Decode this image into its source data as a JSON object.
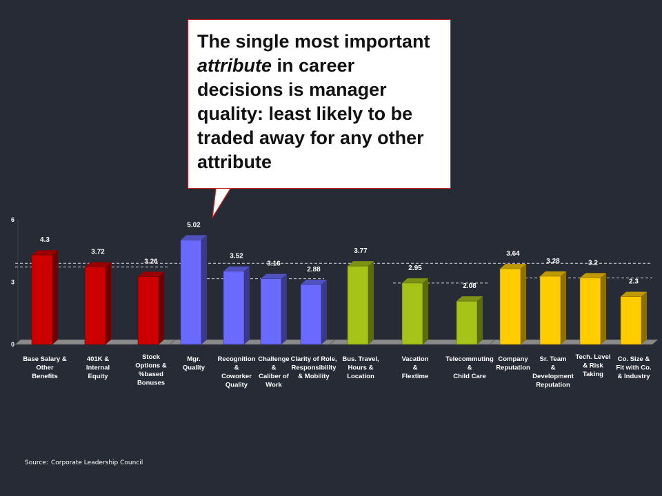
{
  "callout": {
    "line_pre": "The single most important ",
    "line_em": "attribute",
    "line_post": " in career decisions is manager quality: least likely to be traded away for any other attribute"
  },
  "source": {
    "label": "Source:",
    "text": "Corporate Leadership Council"
  },
  "colors": {
    "background": "#262b36",
    "red": "#cc0000",
    "blue": "#6a6aff",
    "green": "#a6c31a",
    "yellow": "#ffcc00",
    "text": "#ffffff",
    "callout_border": "#cc2222"
  },
  "chart_data": {
    "type": "bar",
    "title": "",
    "xlabel": "",
    "ylabel": "",
    "ylim": [
      0,
      6
    ],
    "yticks": [
      "0",
      "3",
      "6"
    ],
    "grid": false,
    "categories": [
      "Base Salary & Other Benefits",
      "401K & Internal Equity",
      "Stock Options & %based Bonuses",
      "Mgr. Quality",
      "Recognition & Coworker Quality",
      "Challenge & Caliber of Work",
      "Clarity of Role, Responsibility & Mobility",
      "Bus. Travel, Hours & Location",
      "Vacation & Flextime",
      "Telecommuting & Child Care",
      "Company Reputation",
      "Sr. Team & Development Reputation",
      "Tech. Level & Risk Taking",
      "Co. Size & Fit with Co. & Industry"
    ],
    "category_lines": [
      [
        "Base Salary &",
        "Other",
        "Benefits"
      ],
      [
        "401K &",
        "Internal",
        "Equity"
      ],
      [
        "Stock",
        "Options &",
        "%based",
        "Bonuses"
      ],
      [
        "Mgr.",
        "Quality"
      ],
      [
        "Recognition",
        "&",
        "Coworker",
        "Quality"
      ],
      [
        "Challenge",
        "&",
        "Caliber of",
        "Work"
      ],
      [
        "Clarity of Role,",
        "Responsibility",
        "& Mobility"
      ],
      [
        "Bus. Travel,",
        "Hours &",
        "Location"
      ],
      [
        "Vacation",
        "&",
        "Flextime"
      ],
      [
        "Telecommuting",
        "&",
        "Child Care"
      ],
      [
        "Company",
        "Reputation"
      ],
      [
        "Sr. Team",
        "&",
        "Development",
        "Reputation"
      ],
      [
        "Tech. Level",
        "& Risk",
        "Taking"
      ],
      [
        "Co. Size &",
        "Fit with Co.",
        "& Industry"
      ]
    ],
    "values": [
      4.3,
      3.72,
      3.26,
      5.02,
      3.52,
      3.16,
      2.88,
      3.77,
      2.95,
      2.08,
      3.64,
      3.28,
      3.2,
      2.3
    ],
    "value_labels": [
      "4.3",
      "3.72",
      "3.26",
      "5.02",
      "3.52",
      "3.16",
      "2.88",
      "3.77",
      "2.95",
      "2.08",
      "3.64",
      "3.28",
      "3.2",
      "2.3"
    ],
    "groups": [
      "red",
      "red",
      "red",
      "blue",
      "blue",
      "blue",
      "blue",
      "green",
      "green",
      "green",
      "yellow",
      "yellow",
      "yellow",
      "yellow"
    ],
    "reference_lines": [
      3.72,
      3.9,
      3.16,
      3.2,
      2.95,
      3.2
    ]
  }
}
